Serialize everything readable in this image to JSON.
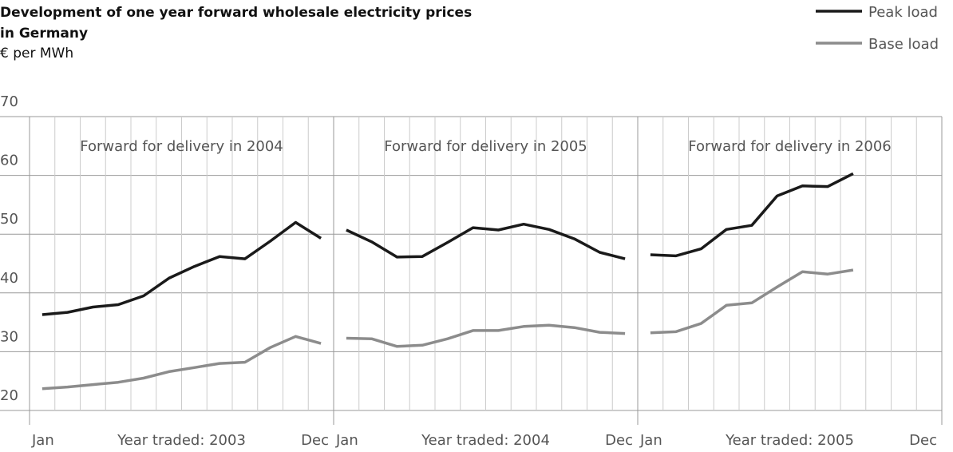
{
  "chart_data": {
    "type": "line",
    "title": "Development of one year forward wholesale electricity prices",
    "title_line2": "in Germany",
    "subtitle": "€ per MWh",
    "ylim": [
      20,
      70
    ],
    "yticks": [
      20,
      30,
      40,
      50,
      60,
      70
    ],
    "grid": true,
    "legend": "top-right",
    "panels": [
      {
        "title": "Forward for delivery in 2004",
        "xlabel": "Year traded: 2003",
        "categories": [
          "Jan",
          null,
          null,
          null,
          null,
          null,
          null,
          null,
          null,
          null,
          null,
          "Dec"
        ]
      },
      {
        "title": "Forward for delivery in 2005",
        "xlabel": "Year traded: 2004",
        "categories": [
          "Jan",
          null,
          null,
          null,
          null,
          null,
          null,
          null,
          null,
          null,
          null,
          "Dec"
        ]
      },
      {
        "title": "Forward for delivery in 2006",
        "xlabel": "Year traded: 2005",
        "categories": [
          "Jan",
          null,
          null,
          null,
          null,
          null,
          null,
          null,
          null,
          null,
          null,
          "Dec"
        ]
      }
    ],
    "series": [
      {
        "name": "Peak load",
        "color": "#1a1a1a",
        "values": [
          [
            36.3,
            36.7,
            37.6,
            38.0,
            39.5,
            42.5,
            44.5,
            46.2,
            45.8,
            48.8,
            52.0,
            49.3
          ],
          [
            50.7,
            48.7,
            46.1,
            46.2,
            48.6,
            51.1,
            50.7,
            51.7,
            50.8,
            49.2,
            46.9,
            45.8
          ],
          [
            46.5,
            46.3,
            47.5,
            50.8,
            51.5,
            56.5,
            58.2,
            58.1,
            60.3,
            null,
            null,
            null
          ]
        ]
      },
      {
        "name": "Base load",
        "color": "#8c8c8c",
        "values": [
          [
            23.7,
            24.0,
            24.4,
            24.8,
            25.5,
            26.6,
            27.3,
            28.0,
            28.2,
            30.7,
            32.6,
            31.4
          ],
          [
            32.3,
            32.2,
            30.9,
            31.1,
            32.2,
            33.6,
            33.6,
            34.3,
            34.5,
            34.1,
            33.3,
            33.1
          ],
          [
            33.2,
            33.4,
            34.8,
            37.9,
            38.3,
            41.0,
            43.6,
            43.2,
            43.9,
            null,
            null,
            null
          ]
        ]
      }
    ]
  }
}
